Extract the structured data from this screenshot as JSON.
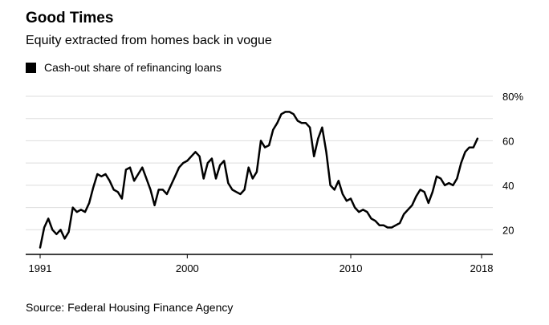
{
  "chart_data": {
    "type": "line",
    "title": "Good Times",
    "subtitle": "Equity extracted from homes back in vogue",
    "source": "Source: Federal Housing Finance Agency",
    "series": [
      {
        "name": "Cash-out share of refinancing loans",
        "color": "#000000",
        "points": [
          [
            1991.0,
            12
          ],
          [
            1991.25,
            21
          ],
          [
            1991.5,
            25
          ],
          [
            1991.75,
            20
          ],
          [
            1992.0,
            18
          ],
          [
            1992.25,
            20
          ],
          [
            1992.5,
            16
          ],
          [
            1992.75,
            19
          ],
          [
            1993.0,
            30
          ],
          [
            1993.25,
            28
          ],
          [
            1993.5,
            29
          ],
          [
            1993.75,
            28
          ],
          [
            1994.0,
            32
          ],
          [
            1994.25,
            39
          ],
          [
            1994.5,
            45
          ],
          [
            1994.75,
            44
          ],
          [
            1995.0,
            45
          ],
          [
            1995.25,
            42
          ],
          [
            1995.5,
            38
          ],
          [
            1995.75,
            37
          ],
          [
            1996.0,
            34
          ],
          [
            1996.25,
            47
          ],
          [
            1996.5,
            48
          ],
          [
            1996.75,
            42
          ],
          [
            1997.0,
            45
          ],
          [
            1997.25,
            48
          ],
          [
            1997.5,
            43
          ],
          [
            1997.75,
            38
          ],
          [
            1998.0,
            31
          ],
          [
            1998.25,
            38
          ],
          [
            1998.5,
            38
          ],
          [
            1998.75,
            36
          ],
          [
            1999.0,
            40
          ],
          [
            1999.25,
            44
          ],
          [
            1999.5,
            48
          ],
          [
            1999.75,
            50
          ],
          [
            2000.0,
            51
          ],
          [
            2000.25,
            53
          ],
          [
            2000.5,
            55
          ],
          [
            2000.75,
            53
          ],
          [
            2001.0,
            43
          ],
          [
            2001.25,
            50
          ],
          [
            2001.5,
            52
          ],
          [
            2001.75,
            43
          ],
          [
            2002.0,
            49
          ],
          [
            2002.25,
            51
          ],
          [
            2002.5,
            41
          ],
          [
            2002.75,
            38
          ],
          [
            2003.0,
            37
          ],
          [
            2003.25,
            36
          ],
          [
            2003.5,
            38
          ],
          [
            2003.75,
            48
          ],
          [
            2004.0,
            43
          ],
          [
            2004.25,
            46
          ],
          [
            2004.5,
            60
          ],
          [
            2004.75,
            57
          ],
          [
            2005.0,
            58
          ],
          [
            2005.25,
            65
          ],
          [
            2005.5,
            68
          ],
          [
            2005.75,
            72
          ],
          [
            2006.0,
            73
          ],
          [
            2006.25,
            73
          ],
          [
            2006.5,
            72
          ],
          [
            2006.75,
            69
          ],
          [
            2007.0,
            68
          ],
          [
            2007.25,
            68
          ],
          [
            2007.5,
            66
          ],
          [
            2007.75,
            53
          ],
          [
            2008.0,
            61
          ],
          [
            2008.25,
            66
          ],
          [
            2008.5,
            55
          ],
          [
            2008.75,
            40
          ],
          [
            2009.0,
            38
          ],
          [
            2009.25,
            42
          ],
          [
            2009.5,
            36
          ],
          [
            2009.75,
            33
          ],
          [
            2010.0,
            34
          ],
          [
            2010.25,
            30
          ],
          [
            2010.5,
            28
          ],
          [
            2010.75,
            29
          ],
          [
            2011.0,
            28
          ],
          [
            2011.25,
            25
          ],
          [
            2011.5,
            24
          ],
          [
            2011.75,
            22
          ],
          [
            2012.0,
            22
          ],
          [
            2012.25,
            21
          ],
          [
            2012.5,
            21
          ],
          [
            2012.75,
            22
          ],
          [
            2013.0,
            23
          ],
          [
            2013.25,
            27
          ],
          [
            2013.5,
            29
          ],
          [
            2013.75,
            31
          ],
          [
            2014.0,
            35
          ],
          [
            2014.25,
            38
          ],
          [
            2014.5,
            37
          ],
          [
            2014.75,
            32
          ],
          [
            2015.0,
            37
          ],
          [
            2015.25,
            44
          ],
          [
            2015.5,
            43
          ],
          [
            2015.75,
            40
          ],
          [
            2016.0,
            41
          ],
          [
            2016.25,
            40
          ],
          [
            2016.5,
            43
          ],
          [
            2016.75,
            50
          ],
          [
            2017.0,
            55
          ],
          [
            2017.25,
            57
          ],
          [
            2017.5,
            57
          ],
          [
            2017.75,
            61
          ]
        ]
      }
    ],
    "x_ticks": [
      {
        "value": 1991,
        "label": "1991"
      },
      {
        "value": 2000,
        "label": "2000"
      },
      {
        "value": 2010,
        "label": "2010"
      },
      {
        "value": 2018,
        "label": "2018"
      }
    ],
    "y_ticks": [
      {
        "value": 20,
        "label": "20"
      },
      {
        "value": 40,
        "label": "40"
      },
      {
        "value": 60,
        "label": "60"
      },
      {
        "value": 80,
        "label": "80%"
      }
    ],
    "y_gridlines": [
      20,
      30,
      40,
      50,
      60,
      70,
      80
    ],
    "xlim": [
      1991,
      2018
    ],
    "ylim": [
      10,
      80
    ],
    "grid": true,
    "y_axis_side": "right",
    "legend_position": "top-left",
    "colors": {
      "line": "#000000",
      "grid": "#dddddd",
      "axis": "#000000",
      "text": "#000000"
    }
  }
}
